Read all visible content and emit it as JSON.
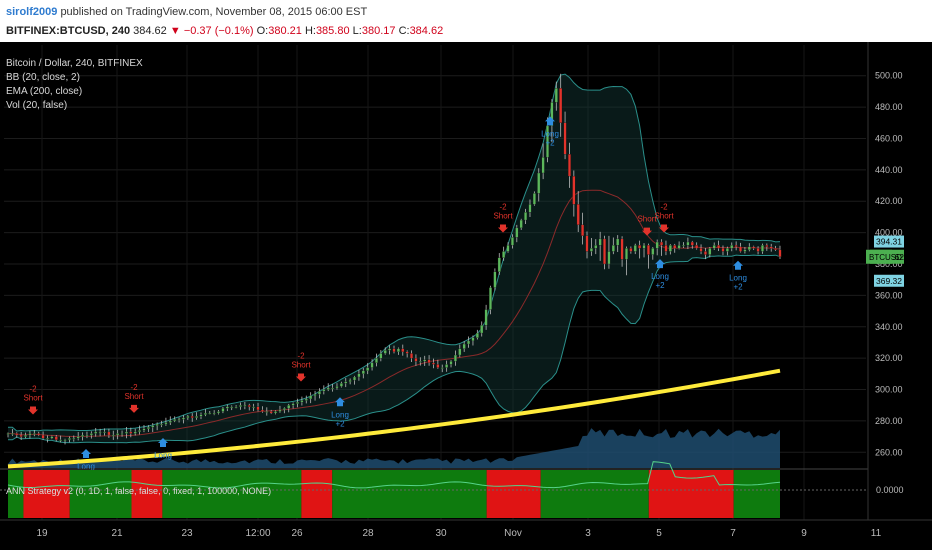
{
  "header": {
    "publisher": "sirolf2009",
    "published_text": "published on TradingView.com, November 08, 2015 06:00 EST",
    "symbol": "BITFINEX:BTCUSD, 240",
    "last": "384.62",
    "change_arrow": "▼",
    "change": "−0.37 (−0.1%)",
    "ohlc": {
      "o_label": "O:",
      "o": "380.21",
      "h_label": "H:",
      "h": "385.80",
      "l_label": "L:",
      "l": "380.17",
      "c_label": "C:",
      "c": "384.62"
    }
  },
  "legend": [
    "Bitcoin / Dollar, 240, BITFINEX",
    "BB (20, close, 2)",
    "EMA (200, close)",
    "Vol (20, false)"
  ],
  "price_axis": {
    "ticks": [
      "500.00",
      "480.00",
      "460.00",
      "440.00",
      "420.00",
      "400.00",
      "380.00",
      "360.00",
      "340.00",
      "320.00",
      "300.00",
      "280.00",
      "260.00"
    ],
    "badges": {
      "upper": "394.31",
      "symbol": "BTCUSD",
      "price": "384.62",
      "lower": "369.32"
    }
  },
  "indicator": {
    "label": "ANN Strategy v2 (0, 1D, 1, false, false, 0, fixed, 1, 100000, NONE)",
    "axis_value": "0.0000"
  },
  "signals": [
    {
      "type": "short",
      "lines": [
        "-2",
        "Short"
      ],
      "x": 33
    },
    {
      "type": "short",
      "lines": [
        "-2",
        "Short"
      ],
      "x": 134
    },
    {
      "type": "short",
      "lines": [
        "-2",
        "Short"
      ],
      "x": 301
    },
    {
      "type": "short",
      "lines": [
        "-2",
        "Short"
      ],
      "x": 503
    },
    {
      "type": "short",
      "lines": [
        "Short"
      ],
      "x": 647
    },
    {
      "type": "short",
      "lines": [
        "-2",
        "Short"
      ],
      "x": 664
    },
    {
      "type": "long",
      "lines": [
        "Long"
      ],
      "x": 86
    },
    {
      "type": "long",
      "lines": [
        "Long"
      ],
      "x": 163
    },
    {
      "type": "long",
      "lines": [
        "Long",
        "+2"
      ],
      "x": 340
    },
    {
      "type": "long",
      "lines": [
        "Long",
        "+2"
      ],
      "x": 550
    },
    {
      "type": "long",
      "lines": [
        "Long",
        "+2"
      ],
      "x": 660
    },
    {
      "type": "long",
      "lines": [
        "Long",
        "+2"
      ],
      "x": 738
    }
  ],
  "time_axis": [
    "19",
    "21",
    "23",
    "12:00",
    "26",
    "28",
    "30",
    "Nov",
    "3",
    "5",
    "7",
    "9",
    "11"
  ],
  "colors": {
    "background": "#000000",
    "up": "#5cb85c",
    "down": "#e2332b",
    "ema": "#ffeb3b",
    "bb": "#2a8f8a",
    "volume": "#1e4c6e",
    "ind_green": "#0e7b0e",
    "ind_red": "#e01414",
    "ind_line": "#55d38a",
    "short": "#e2332b",
    "long": "#2e8de0"
  },
  "chart_data": {
    "type": "candlestick",
    "title": "Bitcoin / Dollar, 240, BITFINEX",
    "ylim": [
      250,
      510
    ],
    "y_ticks": [
      260,
      280,
      300,
      320,
      340,
      360,
      380,
      400,
      420,
      440,
      460,
      480,
      500
    ],
    "x_labels": [
      "19",
      "21",
      "23",
      "12:00",
      "26",
      "28",
      "30",
      "Nov",
      "3",
      "5",
      "7",
      "9",
      "11"
    ],
    "close_series_approx": [
      272,
      272,
      271,
      270,
      271,
      272,
      272,
      271,
      269,
      269,
      270,
      268,
      268,
      268,
      269,
      269,
      270,
      271,
      271,
      272,
      273,
      273,
      273,
      271,
      271,
      272,
      272,
      273,
      272,
      273,
      274,
      275,
      276,
      277,
      278,
      278,
      279,
      280,
      281,
      281,
      282,
      283,
      282,
      283,
      284,
      285,
      285,
      285,
      286,
      288,
      289,
      289,
      289,
      290,
      290,
      289,
      289,
      287,
      286,
      286,
      285,
      286,
      287,
      288,
      290,
      291,
      292,
      293,
      294,
      296,
      297,
      299,
      300,
      301,
      301,
      302,
      304,
      305,
      306,
      308,
      310,
      312,
      314,
      317,
      320,
      323,
      325,
      326,
      324,
      326,
      324,
      323,
      320,
      318,
      318,
      319,
      317,
      316,
      314,
      314,
      316,
      318,
      322,
      326,
      329,
      331,
      333,
      336,
      341,
      351,
      365,
      375,
      384,
      388,
      392,
      397,
      403,
      408,
      413,
      418,
      425,
      438,
      448,
      468,
      483,
      492,
      470,
      450,
      436,
      418,
      405,
      398,
      388,
      390,
      392,
      396,
      380,
      388,
      392,
      396,
      383,
      390,
      388,
      392,
      390,
      392,
      386,
      390,
      394,
      392,
      388,
      392,
      390,
      392,
      392,
      394,
      392,
      390,
      388,
      386,
      390,
      392,
      390,
      388,
      390,
      392,
      391,
      388,
      389,
      391,
      390,
      388,
      392,
      391,
      390,
      389,
      384.62
    ],
    "bb_period": 20,
    "bb_mult": 2,
    "ema_period": 200,
    "ema_endpoints": [
      [
        0,
        251
      ],
      [
        1,
        312
      ]
    ],
    "indicator_segments": [
      {
        "color": "green",
        "from": 0.0,
        "to": 0.02
      },
      {
        "color": "red",
        "from": 0.02,
        "to": 0.08
      },
      {
        "color": "green",
        "from": 0.08,
        "to": 0.16
      },
      {
        "color": "red",
        "from": 0.16,
        "to": 0.2
      },
      {
        "color": "green",
        "from": 0.2,
        "to": 0.38
      },
      {
        "color": "red",
        "from": 0.38,
        "to": 0.42
      },
      {
        "color": "green",
        "from": 0.42,
        "to": 0.62
      },
      {
        "color": "red",
        "from": 0.62,
        "to": 0.69
      },
      {
        "color": "green",
        "from": 0.69,
        "to": 0.83
      },
      {
        "color": "red",
        "from": 0.83,
        "to": 0.94
      },
      {
        "color": "green",
        "from": 0.94,
        "to": 1.0
      }
    ]
  }
}
